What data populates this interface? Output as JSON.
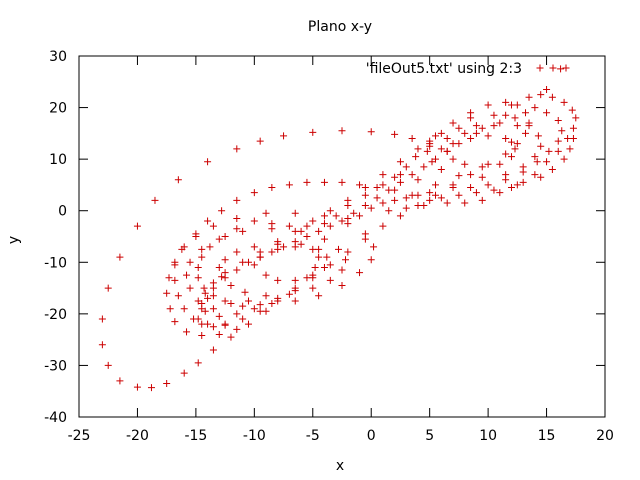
{
  "chart_data": {
    "type": "scatter",
    "title": "Plano x-y",
    "xlabel": "x",
    "ylabel": "y",
    "xlim": [
      -25,
      20
    ],
    "ylim": [
      -40,
      30
    ],
    "xticks": [
      -25,
      -20,
      -15,
      -10,
      -5,
      0,
      5,
      10,
      15,
      20
    ],
    "yticks": [
      -40,
      -30,
      -20,
      -10,
      0,
      10,
      20,
      30
    ],
    "grid": false,
    "legend_position": "top-right",
    "marker": "plus",
    "series": [
      {
        "name": "'fileOut5.txt' using 2:3",
        "color": "#cc0000",
        "points": [
          [
            16.2,
            27.5
          ],
          [
            15.0,
            23.5
          ],
          [
            13.5,
            22.0
          ],
          [
            12.0,
            20.5
          ],
          [
            11.5,
            18.5
          ],
          [
            10.5,
            16.5
          ],
          [
            9.0,
            15.0
          ],
          [
            7.5,
            13.0
          ],
          [
            6.5,
            11.5
          ],
          [
            5.5,
            10.0
          ],
          [
            4.5,
            8.5
          ],
          [
            3.5,
            7.0
          ],
          [
            2.5,
            5.5
          ],
          [
            1.5,
            4.0
          ],
          [
            0.5,
            2.5
          ],
          [
            -0.5,
            1.0
          ],
          [
            -1.5,
            -0.5
          ],
          [
            -2.5,
            -2.0
          ],
          [
            -3.5,
            -3.0
          ],
          [
            -4.5,
            -4.0
          ],
          [
            -5.5,
            -5.0
          ],
          [
            -6.5,
            -6.0
          ],
          [
            -7.5,
            -7.0
          ],
          [
            -8.5,
            -8.0
          ],
          [
            -9.5,
            -9.0
          ],
          [
            -10.5,
            -10.0
          ],
          [
            -11.5,
            -11.5
          ],
          [
            -12.5,
            -13.0
          ],
          [
            -13.5,
            -15.0
          ],
          [
            -14.0,
            -17.0
          ],
          [
            -14.5,
            -19.0
          ],
          [
            -14.8,
            -21.0
          ],
          [
            -14.5,
            -22.0
          ],
          [
            -13.5,
            -22.5
          ],
          [
            -12.5,
            -22.0
          ],
          [
            -11.0,
            -21.0
          ],
          [
            -9.5,
            -19.5
          ],
          [
            -8.0,
            -17.5
          ],
          [
            -6.5,
            -15.5
          ],
          [
            -5.0,
            -13.0
          ],
          [
            -3.5,
            -10.5
          ],
          [
            -2.0,
            -8.0
          ],
          [
            -0.5,
            -5.5
          ],
          [
            1.0,
            -3.0
          ],
          [
            2.5,
            -1.0
          ],
          [
            4.0,
            1.0
          ],
          [
            5.5,
            3.0
          ],
          [
            7.0,
            5.0
          ],
          [
            8.5,
            7.0
          ],
          [
            10.0,
            9.0
          ],
          [
            11.5,
            11.0
          ],
          [
            12.5,
            13.0
          ],
          [
            13.2,
            15.0
          ],
          [
            13.5,
            17.0
          ],
          [
            13.2,
            19.0
          ],
          [
            12.5,
            20.5
          ],
          [
            11.5,
            21.0
          ],
          [
            10.0,
            20.5
          ],
          [
            8.5,
            19.0
          ],
          [
            7.0,
            17.0
          ],
          [
            5.5,
            14.5
          ],
          [
            4.0,
            12.0
          ],
          [
            2.5,
            9.5
          ],
          [
            1.0,
            7.0
          ],
          [
            -0.5,
            4.5
          ],
          [
            -2.0,
            2.0
          ],
          [
            -3.5,
            0.0
          ],
          [
            -5.0,
            -2.0
          ],
          [
            -6.5,
            -4.0
          ],
          [
            -8.0,
            -6.0
          ],
          [
            -9.5,
            -8.0
          ],
          [
            -11.0,
            -10.0
          ],
          [
            -12.5,
            -12.0
          ],
          [
            -13.5,
            -14.0
          ],
          [
            -14.2,
            -16.0
          ],
          [
            -14.5,
            -18.0
          ],
          [
            -14.2,
            -19.5
          ],
          [
            -13.0,
            -20.5
          ],
          [
            -11.5,
            -20.0
          ],
          [
            -10.0,
            -19.0
          ],
          [
            -23.0,
            -21.0
          ],
          [
            -23.0,
            -26.0
          ],
          [
            -22.5,
            -30.0
          ],
          [
            -21.5,
            -33.0
          ],
          [
            -20.0,
            -34.2
          ],
          [
            -18.8,
            -34.3
          ],
          [
            -17.5,
            -33.5
          ],
          [
            -16.0,
            -31.5
          ],
          [
            -14.8,
            -29.5
          ],
          [
            -13.5,
            -27.0
          ],
          [
            -12.0,
            -24.5
          ],
          [
            -10.5,
            -22.0
          ],
          [
            -9.0,
            -19.5
          ],
          [
            -22.5,
            -15.0
          ],
          [
            -21.5,
            -9.0
          ],
          [
            -20.0,
            -3.0
          ],
          [
            -18.5,
            2.0
          ],
          [
            -16.5,
            6.0
          ],
          [
            -14.0,
            9.5
          ],
          [
            -11.5,
            12.0
          ],
          [
            -9.5,
            13.5
          ],
          [
            -7.5,
            14.5
          ],
          [
            -5.0,
            15.2
          ],
          [
            -2.5,
            15.5
          ],
          [
            0.0,
            15.3
          ],
          [
            2.0,
            14.8
          ],
          [
            3.5,
            14.0
          ],
          [
            5.0,
            13.0
          ],
          [
            6.0,
            12.0
          ],
          [
            14.5,
            22.5
          ],
          [
            15.5,
            22.0
          ],
          [
            16.5,
            21.0
          ],
          [
            17.2,
            19.5
          ],
          [
            17.5,
            18.0
          ],
          [
            17.3,
            16.0
          ],
          [
            16.8,
            14.0
          ],
          [
            16.0,
            11.5
          ],
          [
            15.0,
            9.5
          ],
          [
            14.0,
            7.0
          ],
          [
            12.5,
            5.0
          ],
          [
            11.0,
            3.5
          ],
          [
            9.5,
            2.0
          ],
          [
            8.0,
            1.5
          ],
          [
            6.5,
            1.5
          ],
          [
            5.0,
            2.0
          ],
          [
            3.5,
            3.0
          ],
          [
            2.0,
            4.0
          ],
          [
            0.5,
            4.5
          ],
          [
            -1.0,
            5.0
          ],
          [
            -2.5,
            5.5
          ],
          [
            -4.0,
            5.5
          ],
          [
            -5.5,
            5.5
          ],
          [
            -7.0,
            5.0
          ],
          [
            -8.5,
            4.5
          ],
          [
            -10.0,
            3.5
          ],
          [
            -11.5,
            2.0
          ],
          [
            -12.8,
            0.0
          ],
          [
            -14.0,
            -2.0
          ],
          [
            -15.0,
            -4.5
          ],
          [
            -16.0,
            -7.0
          ],
          [
            -16.8,
            -10.0
          ],
          [
            -17.3,
            -13.0
          ],
          [
            -17.5,
            -16.0
          ],
          [
            -17.2,
            -19.0
          ],
          [
            -16.8,
            -21.5
          ],
          [
            -15.8,
            -23.5
          ],
          [
            -14.5,
            -24.2
          ],
          [
            -13.0,
            -24.0
          ],
          [
            -11.5,
            -23.0
          ],
          [
            14.0,
            20.0
          ],
          [
            15.0,
            19.0
          ],
          [
            16.0,
            17.5
          ],
          [
            16.3,
            15.5
          ],
          [
            16.0,
            13.5
          ],
          [
            15.2,
            11.5
          ],
          [
            14.2,
            9.5
          ],
          [
            13.0,
            7.5
          ],
          [
            11.5,
            6.0
          ],
          [
            10.0,
            5.0
          ],
          [
            8.5,
            4.5
          ],
          [
            7.0,
            4.5
          ],
          [
            5.5,
            5.0
          ],
          [
            4.0,
            6.0
          ],
          [
            2.5,
            7.0
          ],
          [
            11.5,
            14.0
          ],
          [
            10.0,
            14.5
          ],
          [
            8.5,
            14.0
          ],
          [
            7.0,
            13.0
          ],
          [
            6.5,
            11.5
          ],
          [
            7.0,
            10.0
          ],
          [
            8.0,
            9.0
          ],
          [
            9.5,
            8.5
          ],
          [
            11.0,
            9.0
          ],
          [
            12.0,
            10.5
          ],
          [
            12.3,
            12.0
          ],
          [
            12.0,
            13.3
          ],
          [
            9.0,
            16.5
          ],
          [
            7.5,
            16.0
          ],
          [
            6.0,
            15.0
          ],
          [
            5.0,
            13.5
          ],
          [
            4.8,
            11.5
          ],
          [
            5.2,
            9.5
          ],
          [
            6.0,
            8.0
          ],
          [
            7.5,
            6.8
          ],
          [
            9.5,
            6.5
          ],
          [
            11.5,
            7.0
          ],
          [
            13.0,
            8.5
          ],
          [
            14.0,
            10.5
          ],
          [
            14.5,
            12.5
          ],
          [
            14.3,
            14.5
          ],
          [
            13.5,
            16.5
          ],
          [
            12.3,
            18.0
          ],
          [
            10.5,
            18.5
          ],
          [
            8.5,
            18.0
          ],
          [
            -10.0,
            -10.5
          ],
          [
            -9.0,
            -12.5
          ],
          [
            -8.0,
            -13.5
          ],
          [
            -6.5,
            -13.5
          ],
          [
            -5.0,
            -12.5
          ],
          [
            -4.0,
            -11.0
          ],
          [
            -3.8,
            -9.0
          ],
          [
            -4.5,
            -7.5
          ],
          [
            -6.0,
            -6.5
          ],
          [
            -8.0,
            -6.5
          ],
          [
            -10.0,
            -7.0
          ],
          [
            -11.5,
            -8.0
          ],
          [
            -12.5,
            -9.5
          ],
          [
            -13.0,
            -11.0
          ],
          [
            -12.8,
            -12.8
          ],
          [
            -12.0,
            -14.5
          ],
          [
            -10.8,
            -15.8
          ],
          [
            -9.0,
            -16.5
          ],
          [
            -7.0,
            -16.2
          ],
          [
            -5.0,
            -15.0
          ],
          [
            -3.5,
            -13.5
          ],
          [
            -2.5,
            -11.5
          ],
          [
            -2.2,
            -9.5
          ],
          [
            -2.8,
            -7.5
          ],
          [
            -4.0,
            -5.5
          ],
          [
            -6.0,
            -4.0
          ],
          [
            -8.5,
            -3.5
          ],
          [
            -11.0,
            -4.0
          ],
          [
            -13.0,
            -5.5
          ],
          [
            -14.5,
            -7.5
          ],
          [
            -15.5,
            -10.0
          ],
          [
            -15.8,
            -12.5
          ],
          [
            -15.5,
            -15.0
          ],
          [
            -14.8,
            -17.5
          ],
          [
            -13.5,
            -19.0
          ],
          [
            -12.0,
            -18.0
          ],
          [
            -10.5,
            -17.5
          ],
          [
            -8.5,
            -18.0
          ],
          [
            -6.5,
            -17.5
          ],
          [
            -4.5,
            -16.5
          ],
          [
            -2.5,
            -14.5
          ],
          [
            -1.0,
            -12.0
          ],
          [
            0.0,
            -9.5
          ],
          [
            0.2,
            -7.0
          ],
          [
            -0.5,
            -4.5
          ],
          [
            -2.0,
            -2.5
          ],
          [
            -4.0,
            -1.0
          ],
          [
            -6.5,
            -0.5
          ],
          [
            -9.0,
            -0.5
          ],
          [
            -11.5,
            -1.5
          ],
          [
            -13.5,
            -3.0
          ],
          [
            -15.0,
            -5.0
          ],
          [
            -16.2,
            -7.5
          ],
          [
            -16.8,
            -10.5
          ],
          [
            -16.8,
            -13.5
          ],
          [
            -16.5,
            -16.5
          ],
          [
            -16.0,
            -19.0
          ],
          [
            -15.2,
            -21.0
          ],
          [
            -14.0,
            -22.0
          ],
          [
            -12.5,
            -22.2
          ],
          [
            1.0,
            1.5
          ],
          [
            2.0,
            2.0
          ],
          [
            3.0,
            2.5
          ],
          [
            4.0,
            3.0
          ],
          [
            5.0,
            3.5
          ],
          [
            -1.0,
            -1.0
          ],
          [
            -2.0,
            -1.5
          ],
          [
            0.0,
            0.5
          ],
          [
            1.5,
            0.0
          ],
          [
            3.0,
            0.5
          ],
          [
            4.5,
            1.0
          ],
          [
            6.0,
            2.5
          ],
          [
            7.5,
            3.0
          ],
          [
            9.0,
            3.5
          ],
          [
            10.5,
            4.0
          ],
          [
            12.0,
            4.5
          ],
          [
            13.0,
            5.5
          ],
          [
            14.5,
            6.5
          ],
          [
            15.5,
            8.0
          ],
          [
            16.5,
            10.0
          ],
          [
            17.0,
            12.0
          ],
          [
            17.3,
            14.0
          ],
          [
            12.5,
            16.5
          ],
          [
            11.0,
            17.0
          ],
          [
            9.5,
            16.0
          ],
          [
            8.0,
            15.0
          ],
          [
            6.5,
            14.0
          ],
          [
            5.0,
            12.5
          ],
          [
            3.8,
            10.5
          ],
          [
            3.0,
            8.5
          ],
          [
            2.0,
            6.5
          ],
          [
            1.0,
            5.0
          ],
          [
            -0.5,
            3.0
          ],
          [
            -2.0,
            1.0
          ],
          [
            -3.0,
            -1.0
          ],
          [
            -4.0,
            -2.5
          ],
          [
            -5.5,
            -3.0
          ],
          [
            -7.0,
            -3.0
          ],
          [
            -8.5,
            -2.5
          ],
          [
            -10.0,
            -2.0
          ],
          [
            -11.5,
            -3.5
          ],
          [
            -12.5,
            -5.0
          ],
          [
            -13.8,
            -7.0
          ],
          [
            -14.5,
            -9.0
          ],
          [
            -14.8,
            -11.0
          ],
          [
            -14.8,
            -13.0
          ],
          [
            -14.3,
            -15.0
          ],
          [
            -13.5,
            -16.5
          ],
          [
            -12.5,
            -17.5
          ],
          [
            -11.0,
            -18.5
          ],
          [
            -9.5,
            -18.2
          ],
          [
            -8.0,
            -17.0
          ],
          [
            -6.5,
            -15.0
          ],
          [
            -5.5,
            -13.0
          ],
          [
            -4.8,
            -11.0
          ],
          [
            -4.5,
            -9.0
          ],
          [
            -5.0,
            -7.5
          ],
          [
            -6.5,
            -7.0
          ],
          [
            -8.0,
            -7.5
          ],
          [
            -9.5,
            -9.0
          ]
        ]
      }
    ]
  }
}
